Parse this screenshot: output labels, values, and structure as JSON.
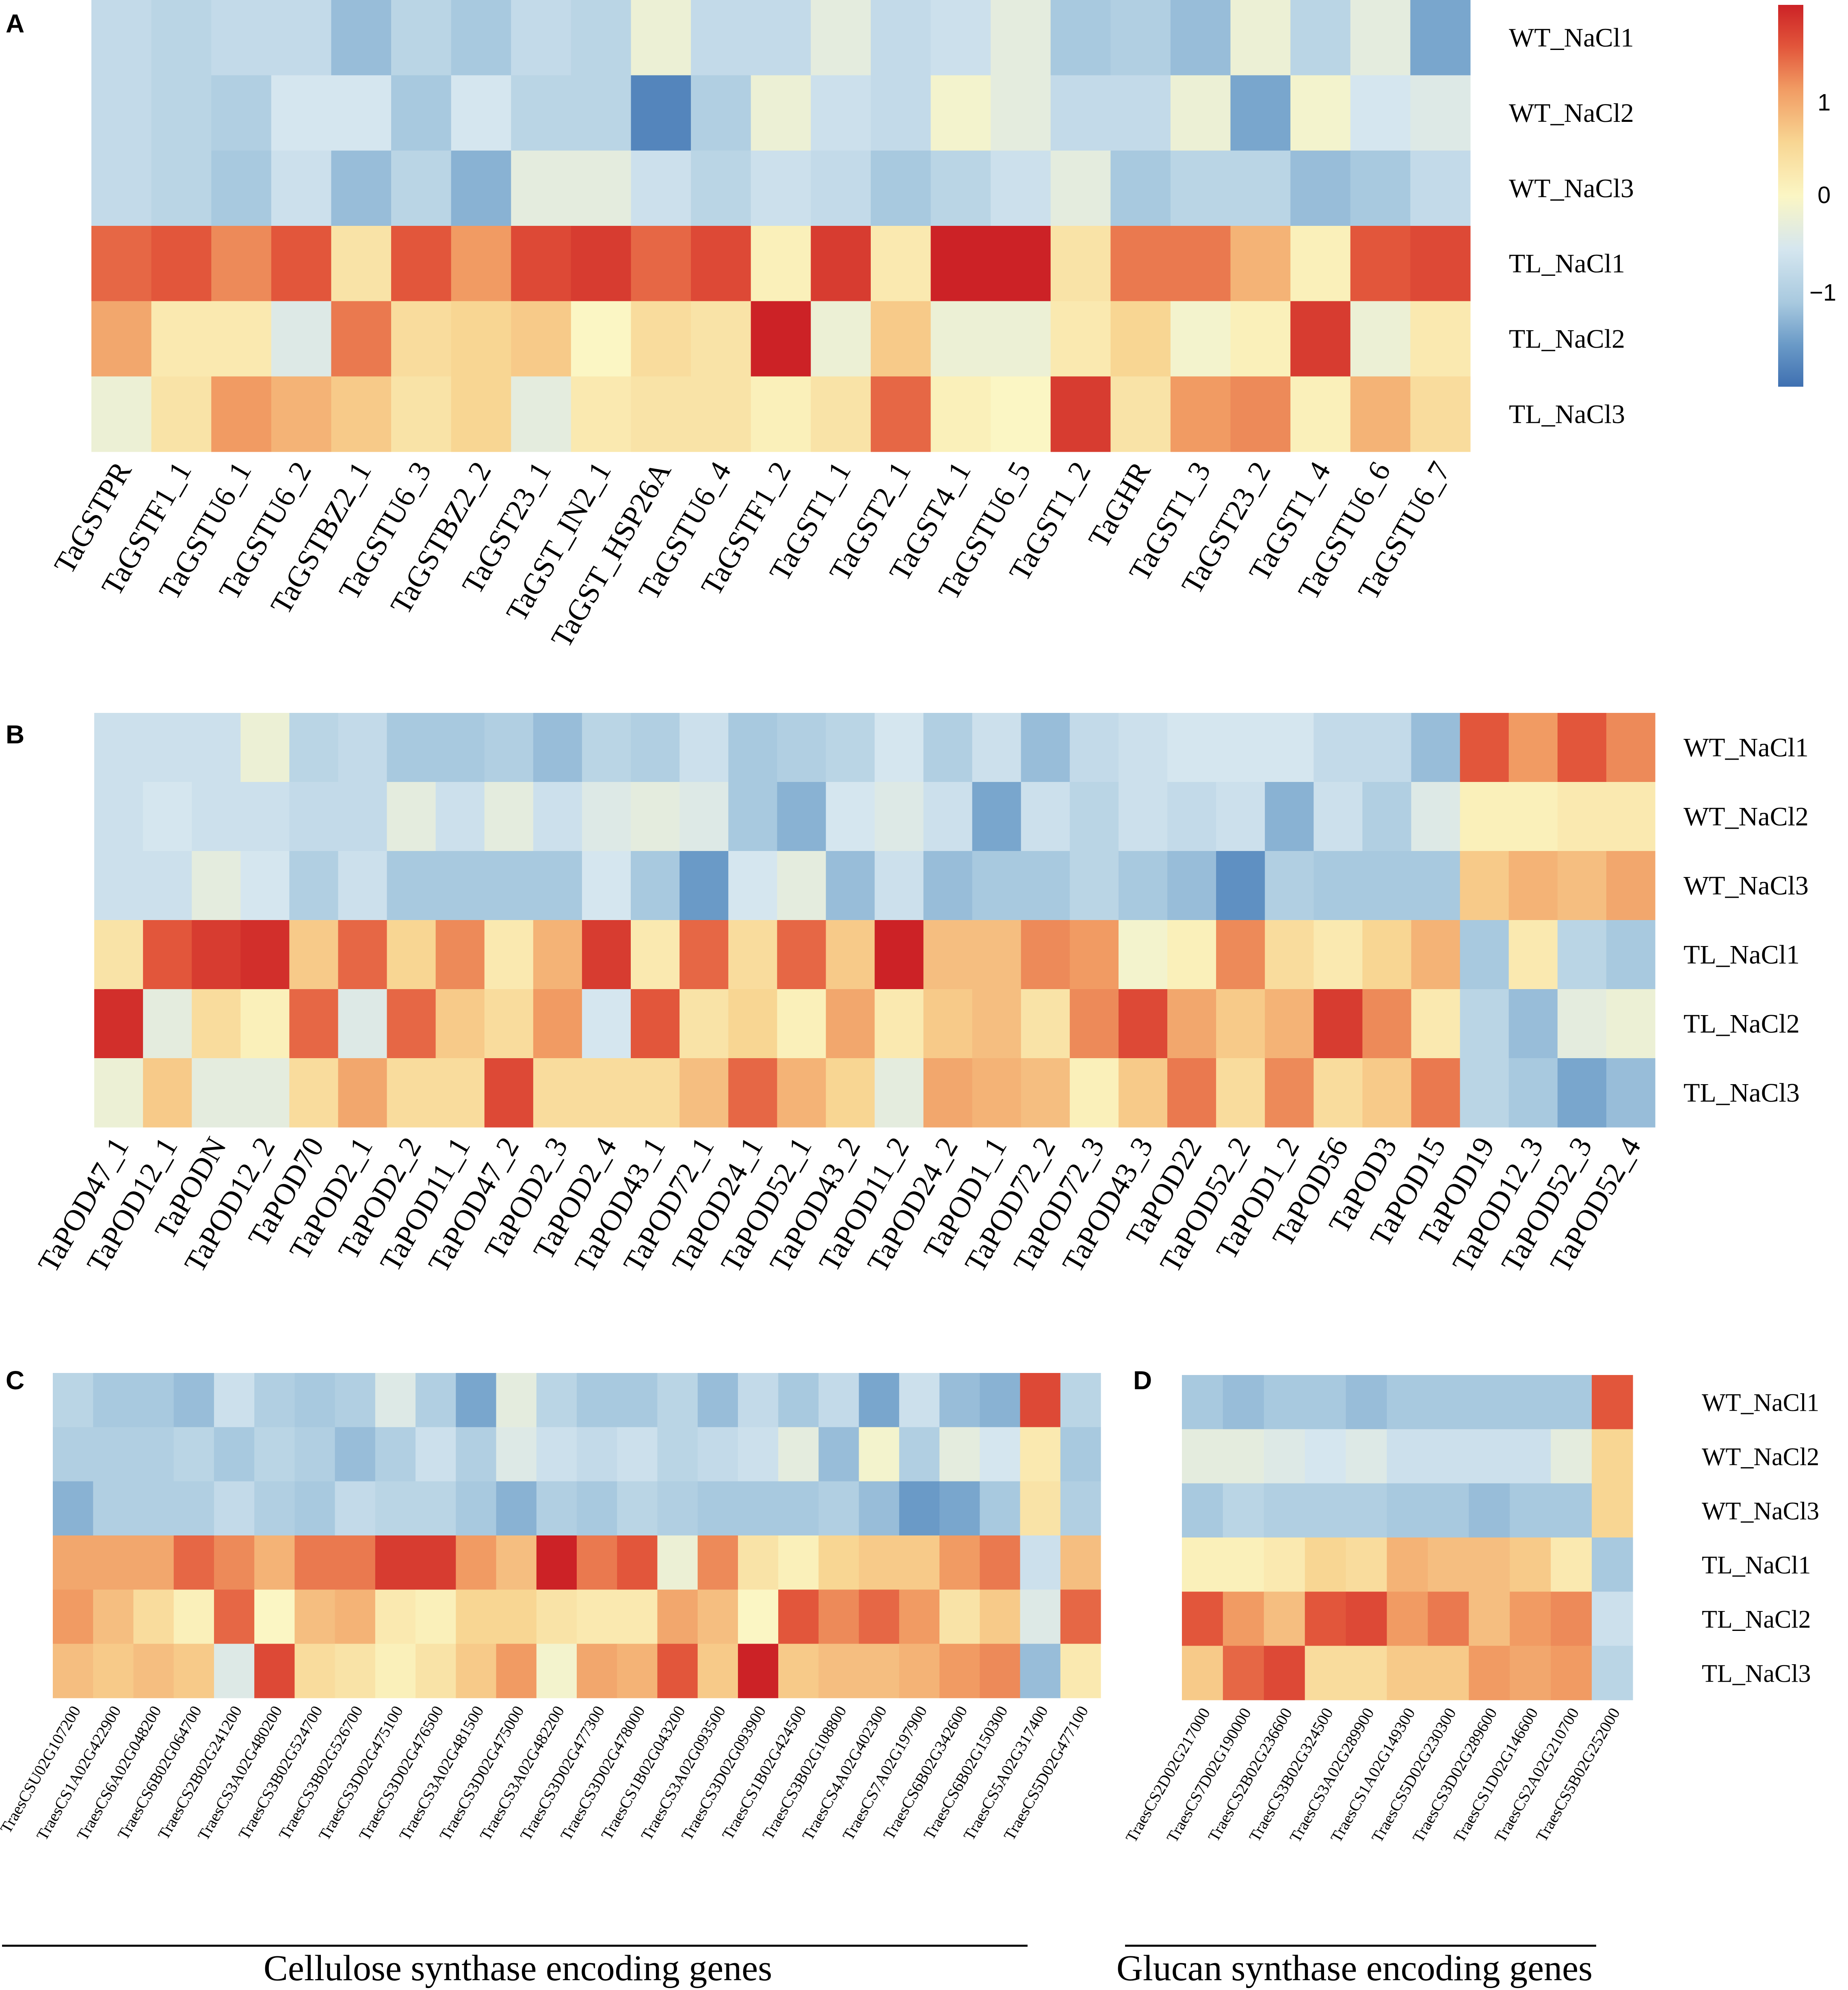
{
  "palette": {
    "stops": [
      [
        -1.8,
        "#3f70b1"
      ],
      [
        -1.4,
        "#6a9ac7"
      ],
      [
        -1.0,
        "#a8c9df"
      ],
      [
        -0.5,
        "#d5e6ef"
      ],
      [
        0.0,
        "#fbf6c4"
      ],
      [
        0.5,
        "#f8d693"
      ],
      [
        1.0,
        "#f19b63"
      ],
      [
        1.4,
        "#e2563b"
      ],
      [
        1.8,
        "#cc2226"
      ]
    ]
  },
  "legend": {
    "ticks": [
      "1",
      "0",
      "−1"
    ],
    "tick_values": [
      1,
      0,
      -1
    ],
    "min": -1.8,
    "max": 1.8
  },
  "chart_data": [
    {
      "panel": "A",
      "type": "heatmap",
      "rows": [
        "WT_NaCl1",
        "WT_NaCl2",
        "WT_NaCl3",
        "TL_NaCl1",
        "TL_NaCl2",
        "TL_NaCl3"
      ],
      "columns": [
        "TaGSTPR",
        "TaGSTF1_1",
        "TaGSTU6_1",
        "TaGSTU6_2",
        "TaGSTBZ2_1",
        "TaGSTU6_3",
        "TaGSTBZ2_2",
        "TaGST23_1",
        "TaGST_IN2_1",
        "TaGST_HSP26A",
        "TaGSTU6_4",
        "TaGSTF1_2",
        "TaGST1_1",
        "TaGST2_1",
        "TaGST4_1",
        "TaGSTU6_5",
        "TaGST1_2",
        "TaGHR",
        "TaGST1_3",
        "TaGST23_2",
        "TaGST1_4",
        "TaGSTU6_6",
        "TaGSTU6_7"
      ],
      "values": [
        [
          -0.7,
          -0.8,
          -0.7,
          -0.7,
          -1.1,
          -0.8,
          -1.0,
          -0.7,
          -0.8,
          -0.2,
          -0.7,
          -0.7,
          -0.3,
          -0.7,
          -0.6,
          -0.3,
          -1.0,
          -0.9,
          -1.1,
          -0.2,
          -0.8,
          -0.3,
          -1.3
        ],
        [
          -0.7,
          -0.8,
          -0.9,
          -0.5,
          -0.5,
          -1.0,
          -0.5,
          -0.8,
          -0.8,
          -1.6,
          -0.9,
          -0.2,
          -0.6,
          -0.7,
          -0.1,
          -0.3,
          -0.7,
          -0.7,
          -0.2,
          -1.3,
          -0.1,
          -0.5,
          -0.4
        ],
        [
          -0.7,
          -0.8,
          -1.0,
          -0.6,
          -1.1,
          -0.8,
          -1.2,
          -0.3,
          -0.3,
          -0.6,
          -0.8,
          -0.6,
          -0.7,
          -1.0,
          -0.8,
          -0.6,
          -0.3,
          -1.0,
          -0.8,
          -0.8,
          -1.1,
          -1.0,
          -0.7
        ],
        [
          1.3,
          1.4,
          1.1,
          1.4,
          0.3,
          1.4,
          1.0,
          1.5,
          1.6,
          1.3,
          1.5,
          0.1,
          1.6,
          0.2,
          1.8,
          1.8,
          0.3,
          1.2,
          1.2,
          0.8,
          0.1,
          1.4,
          1.5
        ],
        [
          0.9,
          0.2,
          0.2,
          -0.4,
          1.2,
          0.4,
          0.5,
          0.6,
          0.0,
          0.4,
          0.3,
          1.8,
          -0.2,
          0.6,
          -0.2,
          -0.2,
          0.2,
          0.5,
          -0.1,
          0.1,
          1.6,
          -0.2,
          0.2
        ],
        [
          -0.2,
          0.3,
          1.0,
          0.8,
          0.6,
          0.3,
          0.5,
          -0.3,
          0.2,
          0.3,
          0.3,
          0.1,
          0.3,
          1.3,
          0.1,
          0.0,
          1.6,
          0.3,
          1.0,
          1.1,
          0.1,
          0.8,
          0.4
        ]
      ]
    },
    {
      "panel": "B",
      "type": "heatmap",
      "rows": [
        "WT_NaCl1",
        "WT_NaCl2",
        "WT_NaCl3",
        "TL_NaCl1",
        "TL_NaCl2",
        "TL_NaCl3"
      ],
      "columns": [
        "TaPOD47_1",
        "TaPOD12_1",
        "TaPODN",
        "TaPOD12_2",
        "TaPOD70",
        "TaPOD2_1",
        "TaPOD2_2",
        "TaPOD11_1",
        "TaPOD47_2",
        "TaPOD2_3",
        "TaPOD2_4",
        "TaPOD43_1",
        "TaPOD72_1",
        "TaPOD24_1",
        "TaPOD52_1",
        "TaPOD43_2",
        "TaPOD11_2",
        "TaPOD24_2",
        "TaPOD1_1",
        "TaPOD72_2",
        "TaPOD72_3",
        "TaPOD43_3",
        "TaPOD22",
        "TaPOD52_2",
        "TaPOD1_2",
        "TaPOD56",
        "TaPOD3",
        "TaPOD15",
        "TaPOD19",
        "TaPOD12_3",
        "TaPOD52_3",
        "TaPOD52_4"
      ],
      "values": [
        [
          -0.6,
          -0.6,
          -0.6,
          -0.2,
          -0.8,
          -0.7,
          -1.0,
          -1.0,
          -0.9,
          -1.1,
          -0.8,
          -0.9,
          -0.6,
          -1.0,
          -0.9,
          -0.8,
          -0.5,
          -0.9,
          -0.6,
          -1.1,
          -0.7,
          -0.6,
          -0.5,
          -0.5,
          -0.5,
          -0.7,
          -0.7,
          -1.1,
          1.4,
          1.0,
          1.4,
          1.1
        ],
        [
          -0.6,
          -0.5,
          -0.6,
          -0.6,
          -0.7,
          -0.7,
          -0.3,
          -0.6,
          -0.3,
          -0.6,
          -0.4,
          -0.3,
          -0.4,
          -1.0,
          -1.2,
          -0.5,
          -0.4,
          -0.6,
          -1.3,
          -0.6,
          -0.8,
          -0.6,
          -0.7,
          -0.6,
          -1.2,
          -0.6,
          -0.9,
          -0.4,
          0.1,
          0.1,
          0.2,
          0.2
        ],
        [
          -0.6,
          -0.6,
          -0.3,
          -0.5,
          -0.9,
          -0.6,
          -1.0,
          -1.0,
          -1.0,
          -1.0,
          -0.5,
          -1.0,
          -1.4,
          -0.5,
          -0.3,
          -1.1,
          -0.6,
          -1.1,
          -1.0,
          -1.0,
          -0.8,
          -1.0,
          -1.1,
          -1.5,
          -0.9,
          -1.0,
          -1.0,
          -1.0,
          0.6,
          0.8,
          0.7,
          0.9
        ],
        [
          0.3,
          1.4,
          1.6,
          1.7,
          0.6,
          1.3,
          0.5,
          1.1,
          0.2,
          0.8,
          1.6,
          0.2,
          1.3,
          0.4,
          1.3,
          0.6,
          1.8,
          0.7,
          0.7,
          1.1,
          1.0,
          -0.1,
          0.1,
          1.1,
          0.4,
          0.2,
          0.5,
          0.8,
          -1.0,
          0.2,
          -0.8,
          -1.0
        ],
        [
          1.7,
          -0.3,
          0.4,
          0.1,
          1.3,
          -0.4,
          1.3,
          0.6,
          0.4,
          1.0,
          -0.5,
          1.4,
          0.3,
          0.5,
          0.1,
          0.9,
          0.2,
          0.6,
          0.7,
          0.3,
          1.1,
          1.5,
          0.9,
          0.6,
          0.8,
          1.6,
          1.1,
          0.2,
          -0.8,
          -1.1,
          -0.3,
          -0.2
        ],
        [
          -0.2,
          0.6,
          -0.3,
          -0.3,
          0.4,
          0.9,
          0.4,
          0.4,
          1.5,
          0.4,
          0.4,
          0.4,
          0.7,
          1.3,
          0.8,
          0.5,
          -0.3,
          0.9,
          0.8,
          0.7,
          0.1,
          0.6,
          1.2,
          0.4,
          1.1,
          0.4,
          0.6,
          1.2,
          -0.8,
          -1.0,
          -1.3,
          -1.1
        ]
      ]
    },
    {
      "panel": "C",
      "type": "heatmap",
      "rows": [
        "WT_NaCl1",
        "WT_NaCl2",
        "WT_NaCl3",
        "TL_NaCl1",
        "TL_NaCl2",
        "TL_NaCl3"
      ],
      "columns": [
        "TraesCSU02G107200",
        "TraesCS1A02G422900",
        "TraesCS6A02G048200",
        "TraesCS6B02G064700",
        "TraesCS2B02G241200",
        "TraesCS3A02G480200",
        "TraesCS3B02G524700",
        "TraesCS3B02G526700",
        "TraesCS3D02G475100",
        "TraesCS3D02G476500",
        "TraesCS3A02G481500",
        "TraesCS3D02G475000",
        "TraesCS3A02G482200",
        "TraesCS3D02G477300",
        "TraesCS3D02G478000",
        "TraesCS1B02G043200",
        "TraesCS3A02G093500",
        "TraesCS3D02G093900",
        "TraesCS1B02G424500",
        "TraesCS3B02G108800",
        "TraesCS4A02G402300",
        "TraesCS7A02G197900",
        "TraesCS6B02G342600",
        "TraesCS6B02G150300",
        "TraesCS5A02G317400",
        "TraesCS5D02G477100"
      ],
      "values": [
        [
          -0.8,
          -1.0,
          -1.0,
          -1.1,
          -0.6,
          -0.9,
          -1.0,
          -0.9,
          -0.4,
          -0.9,
          -1.3,
          -0.3,
          -0.8,
          -1.0,
          -1.0,
          -0.8,
          -1.1,
          -0.7,
          -1.0,
          -0.7,
          -1.3,
          -0.6,
          -1.1,
          -1.2,
          1.5,
          -0.8
        ],
        [
          -0.9,
          -0.9,
          -0.9,
          -0.8,
          -1.0,
          -0.8,
          -0.9,
          -1.1,
          -0.9,
          -0.6,
          -0.9,
          -0.4,
          -0.6,
          -0.7,
          -0.6,
          -0.8,
          -0.7,
          -0.6,
          -0.3,
          -1.1,
          -0.1,
          -0.9,
          -0.3,
          -0.5,
          0.2,
          -1.0
        ],
        [
          -1.2,
          -0.9,
          -0.9,
          -0.9,
          -0.7,
          -0.9,
          -1.0,
          -0.7,
          -0.8,
          -0.8,
          -1.0,
          -1.2,
          -0.9,
          -1.0,
          -0.8,
          -0.9,
          -1.0,
          -1.0,
          -1.0,
          -0.9,
          -1.1,
          -1.4,
          -1.3,
          -1.0,
          0.3,
          -0.9
        ],
        [
          0.9,
          0.9,
          0.9,
          1.3,
          1.1,
          0.8,
          1.2,
          1.2,
          1.6,
          1.6,
          1.0,
          0.7,
          1.8,
          1.2,
          1.4,
          -0.2,
          1.1,
          0.3,
          0.1,
          0.5,
          0.6,
          0.6,
          1.0,
          1.2,
          -0.6,
          0.7
        ],
        [
          1.0,
          0.7,
          0.4,
          0.1,
          1.3,
          0.0,
          0.7,
          0.8,
          0.2,
          0.1,
          0.5,
          0.5,
          0.3,
          0.2,
          0.2,
          0.9,
          0.7,
          0.0,
          1.4,
          1.1,
          1.3,
          1.0,
          0.3,
          0.6,
          -0.4,
          1.3
        ],
        [
          0.7,
          0.6,
          0.7,
          0.6,
          -0.4,
          1.5,
          0.4,
          0.3,
          0.1,
          0.3,
          0.6,
          1.0,
          -0.1,
          0.9,
          0.8,
          1.4,
          0.6,
          1.8,
          0.6,
          0.7,
          0.7,
          0.8,
          1.0,
          1.1,
          -1.1,
          0.2
        ]
      ]
    },
    {
      "panel": "D",
      "type": "heatmap",
      "rows": [
        "WT_NaCl1",
        "WT_NaCl2",
        "WT_NaCl3",
        "TL_NaCl1",
        "TL_NaCl2",
        "TL_NaCl3"
      ],
      "columns": [
        "TraesCS2D02G217000",
        "TraesCS7D02G190000",
        "TraesCS2B02G236600",
        "TraesCS3B02G324500",
        "TraesCS3A02G289900",
        "TraesCS1A02G149300",
        "TraesCS5D02G230300",
        "TraesCS3D02G289600",
        "TraesCS1D02G146600",
        "TraesCS2A02G210700",
        "TraesCS5B02G252000"
      ],
      "values": [
        [
          -1.0,
          -1.1,
          -1.0,
          -1.0,
          -1.1,
          -1.0,
          -1.0,
          -1.0,
          -1.0,
          -1.0,
          1.4
        ],
        [
          -0.3,
          -0.3,
          -0.4,
          -0.5,
          -0.4,
          -0.6,
          -0.6,
          -0.6,
          -0.6,
          -0.3,
          0.5
        ],
        [
          -1.0,
          -0.8,
          -0.9,
          -0.9,
          -0.9,
          -1.0,
          -1.0,
          -1.1,
          -1.0,
          -1.0,
          0.5
        ],
        [
          0.1,
          0.1,
          0.2,
          0.5,
          0.4,
          0.8,
          0.7,
          0.7,
          0.6,
          0.2,
          -1.0
        ],
        [
          1.4,
          1.0,
          0.7,
          1.4,
          1.5,
          1.0,
          1.2,
          0.7,
          1.0,
          1.1,
          -0.6
        ],
        [
          0.6,
          1.3,
          1.5,
          0.4,
          0.4,
          0.6,
          0.6,
          1.0,
          0.9,
          1.0,
          -0.8
        ]
      ]
    }
  ],
  "panels": [
    {
      "letter": "A",
      "caption": ""
    },
    {
      "letter": "B",
      "caption": ""
    },
    {
      "letter": "C",
      "caption": "Cellulose synthase encoding genes"
    },
    {
      "letter": "D",
      "caption": "Glucan synthase encoding genes"
    }
  ]
}
